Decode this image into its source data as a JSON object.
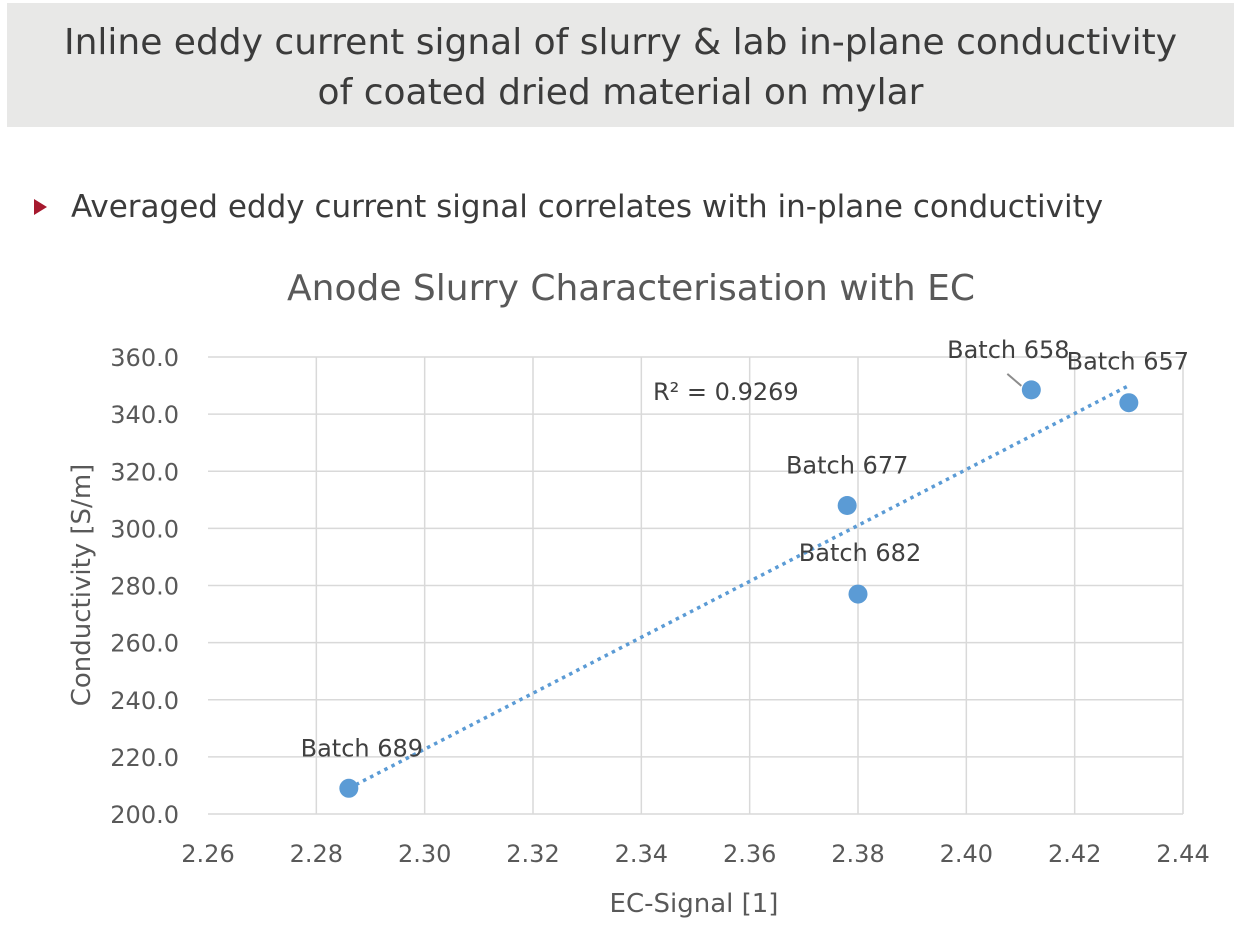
{
  "slide": {
    "title_line1": "Inline eddy current signal of slurry & lab in-plane conductivity",
    "title_line2": "of coated dried material on mylar",
    "bullet": "Averaged eddy current signal correlates with in-plane conductivity"
  },
  "colors": {
    "accent": "#a6192e",
    "series": "#5b9bd5",
    "header_band": "#e8e8e7"
  },
  "chart_data": {
    "type": "scatter",
    "title": "Anode Slurry Characterisation with EC",
    "xlabel": "EC-Signal [1]",
    "ylabel": "Conductivity [S/m]",
    "xlim": [
      2.26,
      2.44
    ],
    "ylim": [
      200.0,
      360.0
    ],
    "x_ticks": [
      "2.26",
      "2.28",
      "2.30",
      "2.32",
      "2.34",
      "2.36",
      "2.38",
      "2.40",
      "2.42",
      "2.44"
    ],
    "y_ticks": [
      "200.0",
      "220.0",
      "240.0",
      "260.0",
      "280.0",
      "300.0",
      "320.0",
      "340.0",
      "360.0"
    ],
    "grid": true,
    "points": [
      {
        "label": "Batch 689",
        "x": 2.286,
        "y": 209.0
      },
      {
        "label": "Batch 677",
        "x": 2.378,
        "y": 308.0
      },
      {
        "label": "Batch 682",
        "x": 2.38,
        "y": 277.0
      },
      {
        "label": "Batch 658",
        "x": 2.412,
        "y": 348.5
      },
      {
        "label": "Batch 657",
        "x": 2.43,
        "y": 344.0
      }
    ],
    "trendline": {
      "type": "linear",
      "style": "dotted",
      "x_range": [
        2.286,
        2.43
      ],
      "y_range": [
        209.0,
        350.0
      ],
      "r2_label": "R² = 0.9269"
    }
  }
}
